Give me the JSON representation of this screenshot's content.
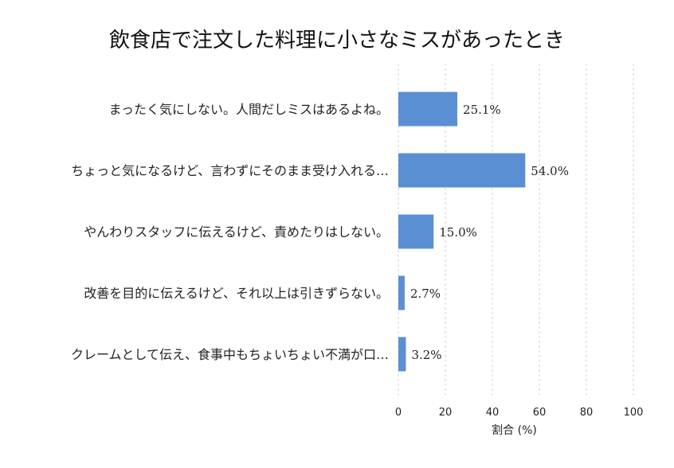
{
  "chart_data": {
    "type": "bar",
    "orientation": "horizontal",
    "title": "飲食店で注文した料理に小さなミスがあったとき",
    "xlabel": "割合 (%)",
    "ylabel": "",
    "xlim": [
      0,
      100
    ],
    "xticks": [
      0,
      20,
      40,
      60,
      80,
      100
    ],
    "grid": true,
    "bar_color": "#5b8fd4",
    "categories": [
      "まったく気にしない。人間だしミスはあるよね。",
      "ちょっと気になるけど、言わずにそのまま受け入れる…",
      "やんわりスタッフに伝えるけど、責めたりはしない。",
      "改善を目的に伝えるけど、それ以上は引きずらない。",
      "クレームとして伝え、食事中もちょいちょい不満が口…"
    ],
    "values": [
      25.1,
      54.0,
      15.0,
      2.7,
      3.2
    ],
    "value_labels": [
      "25.1%",
      "54.0%",
      "15.0%",
      "2.7%",
      "3.2%"
    ]
  }
}
